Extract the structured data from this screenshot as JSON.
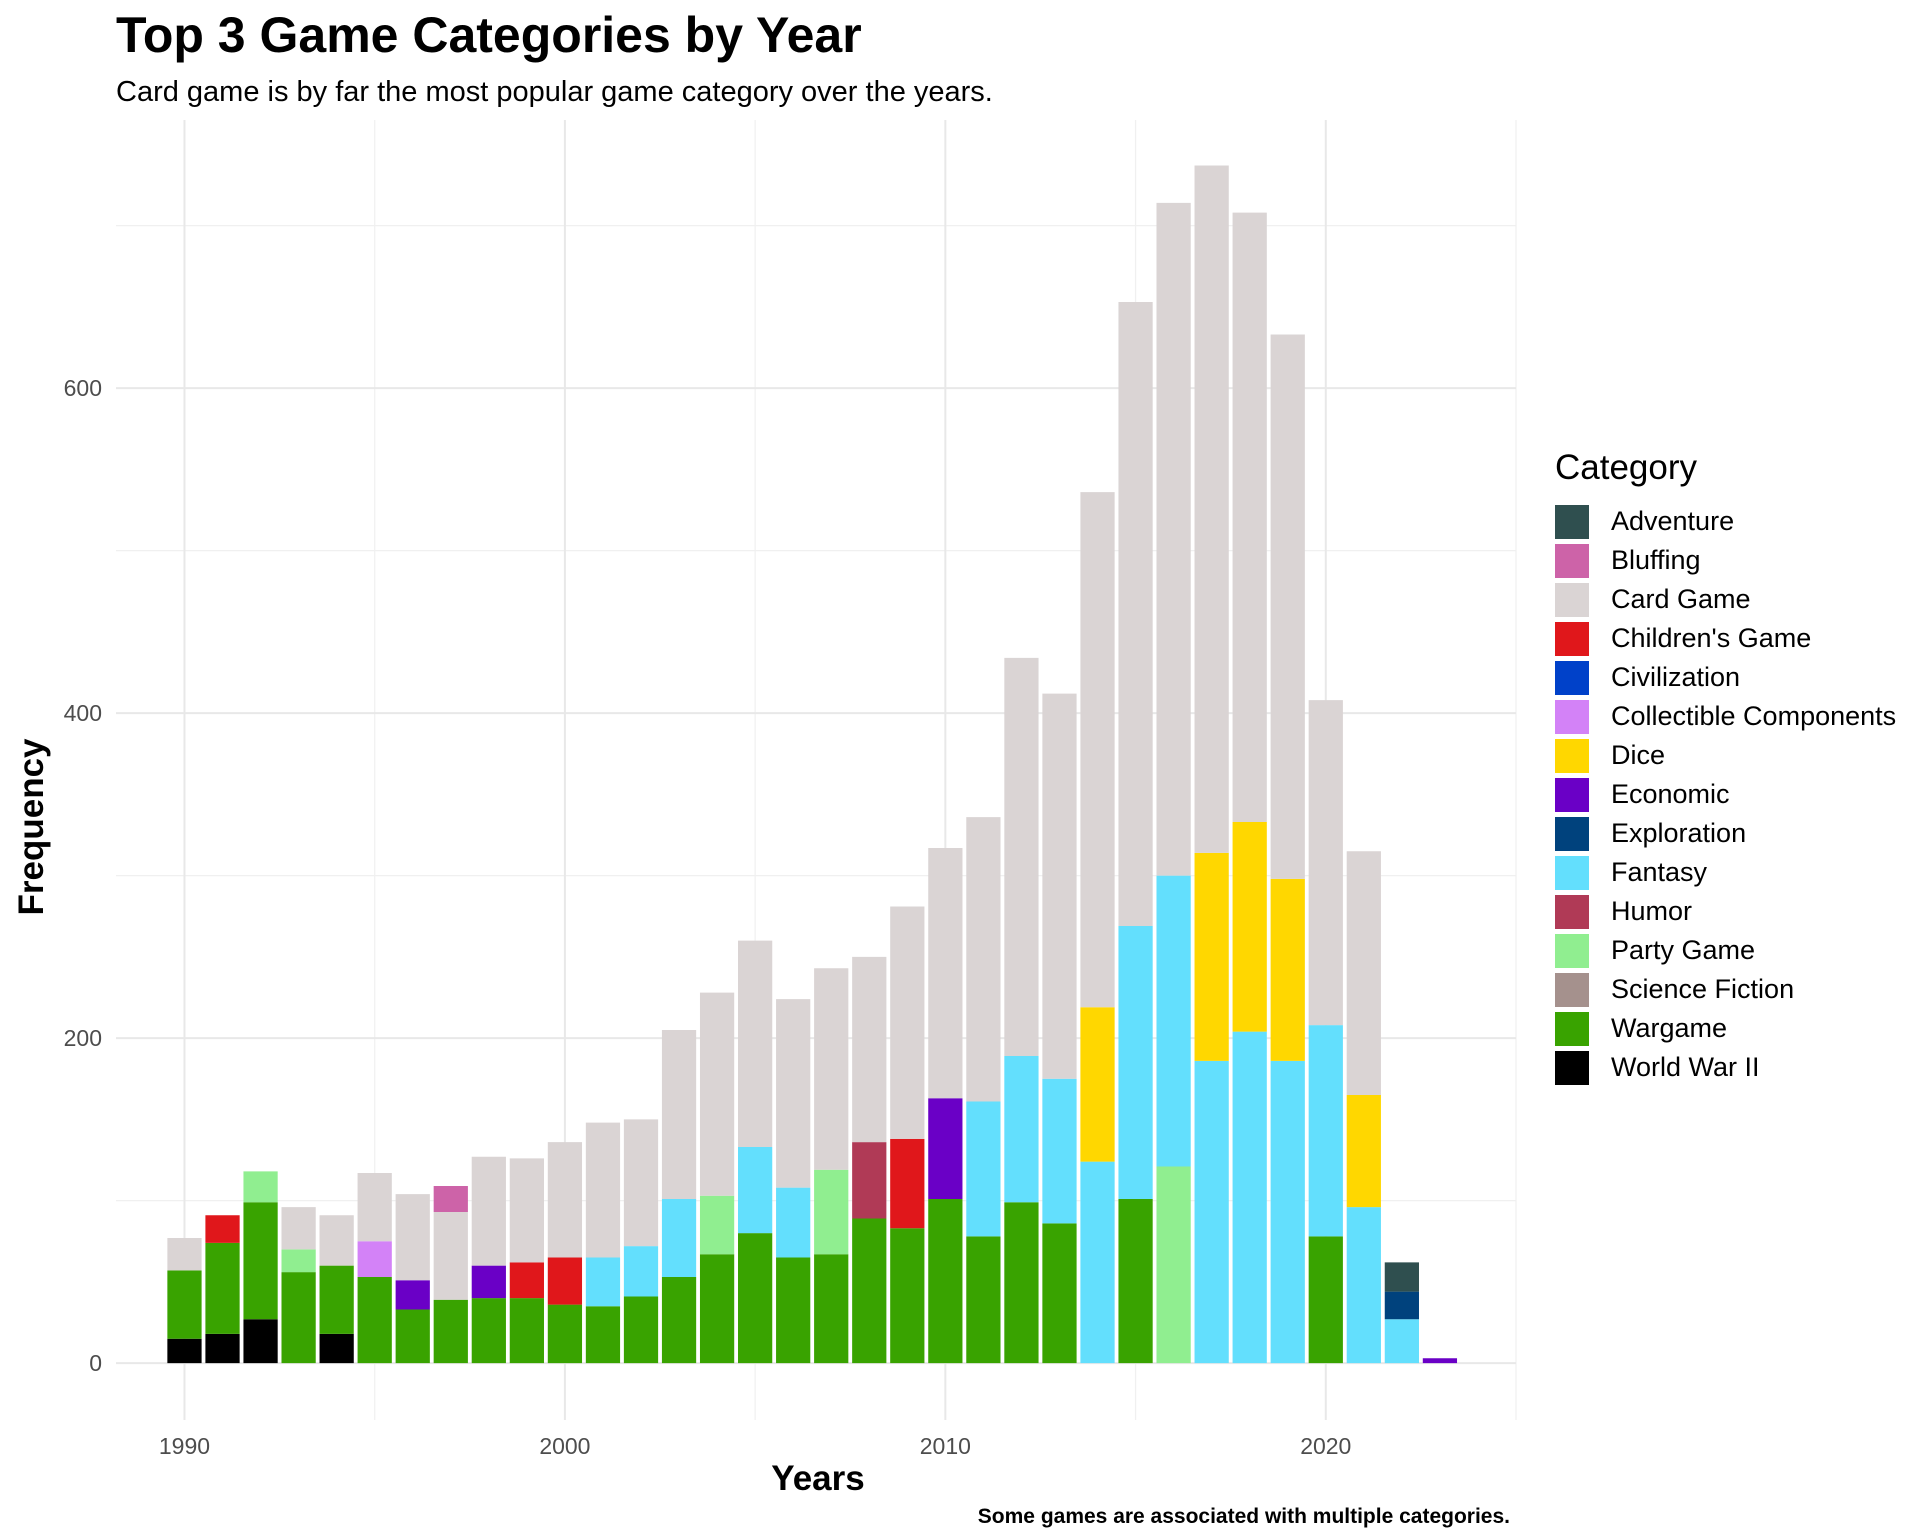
{
  "chart_data": {
    "type": "bar",
    "stacked": true,
    "title": "Top 3 Game Categories by Year",
    "subtitle": "Card game is by far the most popular game category over the years.",
    "xlabel": "Years",
    "ylabel": "Frequency",
    "caption": "Some games are associated with multiple categories.",
    "xlim": [
      1988.2,
      2025
    ],
    "ylim": [
      -35,
      765
    ],
    "x_ticks": [
      1990,
      2000,
      2010,
      2020
    ],
    "y_ticks": [
      0,
      200,
      400,
      600
    ],
    "grid": true,
    "legend_title": "Category",
    "legend_position": "right",
    "categories": [
      {
        "name": "Adventure",
        "color": "#2f4f4f"
      },
      {
        "name": "Bluffing",
        "color": "#cd63a8"
      },
      {
        "name": "Card Game",
        "color": "#dad4d4"
      },
      {
        "name": "Children's Game",
        "color": "#e0171b"
      },
      {
        "name": "Civilization",
        "color": "#0041c9"
      },
      {
        "name": "Collectible Components",
        "color": "#d382f7"
      },
      {
        "name": "Dice",
        "color": "#ffd700"
      },
      {
        "name": "Economic",
        "color": "#6a00c6"
      },
      {
        "name": "Exploration",
        "color": "#00427d"
      },
      {
        "name": "Fantasy",
        "color": "#63dffd"
      },
      {
        "name": "Humor",
        "color": "#b03a56"
      },
      {
        "name": "Party Game",
        "color": "#90ee90"
      },
      {
        "name": "Science Fiction",
        "color": "#a5918d"
      },
      {
        "name": "Wargame",
        "color": "#39a300"
      },
      {
        "name": "World War II",
        "color": "#000000"
      }
    ],
    "bars": [
      {
        "year": 1990,
        "stack": [
          [
            "World War II",
            15
          ],
          [
            "Wargame",
            42
          ],
          [
            "Card Game",
            20
          ]
        ]
      },
      {
        "year": 1991,
        "stack": [
          [
            "World War II",
            18
          ],
          [
            "Wargame",
            56
          ],
          [
            "Children's Game",
            17
          ]
        ]
      },
      {
        "year": 1992,
        "stack": [
          [
            "World War II",
            27
          ],
          [
            "Wargame",
            72
          ],
          [
            "Party Game",
            19
          ]
        ]
      },
      {
        "year": 1993,
        "stack": [
          [
            "Wargame",
            56
          ],
          [
            "Party Game",
            14
          ],
          [
            "Card Game",
            26
          ]
        ]
      },
      {
        "year": 1994,
        "stack": [
          [
            "World War II",
            18
          ],
          [
            "Wargame",
            42
          ],
          [
            "Card Game",
            31
          ]
        ]
      },
      {
        "year": 1995,
        "stack": [
          [
            "Wargame",
            53
          ],
          [
            "Collectible Components",
            22
          ],
          [
            "Card Game",
            42
          ]
        ]
      },
      {
        "year": 1996,
        "stack": [
          [
            "Wargame",
            33
          ],
          [
            "Economic",
            18
          ],
          [
            "Card Game",
            53
          ]
        ]
      },
      {
        "year": 1997,
        "stack": [
          [
            "Wargame",
            39
          ],
          [
            "Card Game",
            54
          ],
          [
            "Bluffing",
            16
          ]
        ]
      },
      {
        "year": 1998,
        "stack": [
          [
            "Wargame",
            40
          ],
          [
            "Economic",
            20
          ],
          [
            "Card Game",
            67
          ]
        ]
      },
      {
        "year": 1999,
        "stack": [
          [
            "Wargame",
            40
          ],
          [
            "Children's Game",
            22
          ],
          [
            "Card Game",
            64
          ]
        ]
      },
      {
        "year": 2000,
        "stack": [
          [
            "Wargame",
            36
          ],
          [
            "Children's Game",
            29
          ],
          [
            "Card Game",
            71
          ]
        ]
      },
      {
        "year": 2001,
        "stack": [
          [
            "Wargame",
            35
          ],
          [
            "Fantasy",
            30
          ],
          [
            "Card Game",
            83
          ]
        ]
      },
      {
        "year": 2002,
        "stack": [
          [
            "Wargame",
            41
          ],
          [
            "Fantasy",
            31
          ],
          [
            "Card Game",
            78
          ]
        ]
      },
      {
        "year": 2003,
        "stack": [
          [
            "Wargame",
            53
          ],
          [
            "Fantasy",
            48
          ],
          [
            "Card Game",
            104
          ]
        ]
      },
      {
        "year": 2004,
        "stack": [
          [
            "Wargame",
            67
          ],
          [
            "Party Game",
            36
          ],
          [
            "Card Game",
            125
          ]
        ]
      },
      {
        "year": 2005,
        "stack": [
          [
            "Wargame",
            80
          ],
          [
            "Fantasy",
            53
          ],
          [
            "Card Game",
            127
          ]
        ]
      },
      {
        "year": 2006,
        "stack": [
          [
            "Wargame",
            65
          ],
          [
            "Fantasy",
            43
          ],
          [
            "Card Game",
            116
          ]
        ]
      },
      {
        "year": 2007,
        "stack": [
          [
            "Wargame",
            67
          ],
          [
            "Party Game",
            52
          ],
          [
            "Card Game",
            124
          ]
        ]
      },
      {
        "year": 2008,
        "stack": [
          [
            "Wargame",
            89
          ],
          [
            "Humor",
            47
          ],
          [
            "Card Game",
            114
          ]
        ]
      },
      {
        "year": 2009,
        "stack": [
          [
            "Wargame",
            83
          ],
          [
            "Children's Game",
            55
          ],
          [
            "Card Game",
            143
          ]
        ]
      },
      {
        "year": 2010,
        "stack": [
          [
            "Wargame",
            101
          ],
          [
            "Economic",
            62
          ],
          [
            "Card Game",
            154
          ]
        ]
      },
      {
        "year": 2011,
        "stack": [
          [
            "Wargame",
            78
          ],
          [
            "Fantasy",
            83
          ],
          [
            "Card Game",
            175
          ]
        ]
      },
      {
        "year": 2012,
        "stack": [
          [
            "Wargame",
            99
          ],
          [
            "Fantasy",
            90
          ],
          [
            "Card Game",
            245
          ]
        ]
      },
      {
        "year": 2013,
        "stack": [
          [
            "Wargame",
            86
          ],
          [
            "Fantasy",
            89
          ],
          [
            "Card Game",
            237
          ]
        ]
      },
      {
        "year": 2014,
        "stack": [
          [
            "Fantasy",
            124
          ],
          [
            "Dice",
            95
          ],
          [
            "Card Game",
            317
          ]
        ]
      },
      {
        "year": 2015,
        "stack": [
          [
            "Wargame",
            101
          ],
          [
            "Fantasy",
            168
          ],
          [
            "Card Game",
            384
          ]
        ]
      },
      {
        "year": 2016,
        "stack": [
          [
            "Party Game",
            121
          ],
          [
            "Fantasy",
            179
          ],
          [
            "Card Game",
            414
          ]
        ]
      },
      {
        "year": 2017,
        "stack": [
          [
            "Fantasy",
            186
          ],
          [
            "Dice",
            128
          ],
          [
            "Card Game",
            423
          ]
        ]
      },
      {
        "year": 2018,
        "stack": [
          [
            "Fantasy",
            204
          ],
          [
            "Dice",
            129
          ],
          [
            "Card Game",
            375
          ]
        ]
      },
      {
        "year": 2019,
        "stack": [
          [
            "Fantasy",
            186
          ],
          [
            "Dice",
            112
          ],
          [
            "Card Game",
            335
          ]
        ]
      },
      {
        "year": 2020,
        "stack": [
          [
            "Wargame",
            78
          ],
          [
            "Fantasy",
            130
          ],
          [
            "Card Game",
            200
          ]
        ]
      },
      {
        "year": 2021,
        "stack": [
          [
            "Fantasy",
            96
          ],
          [
            "Dice",
            69
          ],
          [
            "Card Game",
            150
          ]
        ]
      },
      {
        "year": 2022,
        "stack": [
          [
            "Fantasy",
            27
          ],
          [
            "Exploration",
            17
          ],
          [
            "Adventure",
            18
          ]
        ]
      },
      {
        "year": 2023,
        "stack": [
          [
            "Economic",
            3
          ]
        ]
      }
    ]
  }
}
